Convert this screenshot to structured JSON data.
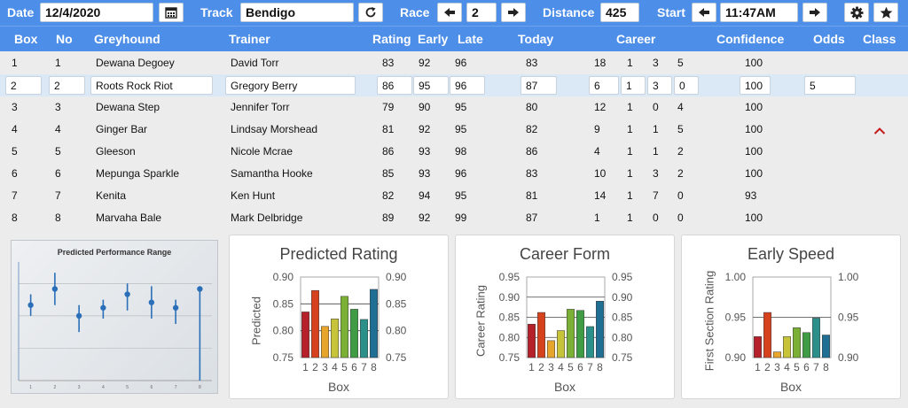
{
  "toolbar": {
    "date_label": "Date",
    "date_value": "12/4/2020",
    "track_label": "Track",
    "track_value": "Bendigo",
    "race_label": "Race",
    "race_value": "2",
    "distance_label": "Distance",
    "distance_value": "425",
    "start_label": "Start",
    "start_value": "11:47AM"
  },
  "columns": {
    "box": "Box",
    "no": "No",
    "greyhound": "Greyhound",
    "trainer": "Trainer",
    "rating": "Rating",
    "early": "Early",
    "late": "Late",
    "today": "Today",
    "career": "Career",
    "confidence": "Confidence",
    "odds": "Odds",
    "class": "Class"
  },
  "rows": [
    {
      "box": "1",
      "no": "1",
      "greyhound": "Dewana Degoey",
      "trainer": "David Torr",
      "rating": "83",
      "early": "92",
      "late": "96",
      "today": "83",
      "c1": "18",
      "c2": "1",
      "c3": "3",
      "c4": "5",
      "confidence": "100",
      "odds": ""
    },
    {
      "box": "2",
      "no": "2",
      "greyhound": "Roots Rock Riot",
      "trainer": "Gregory Berry",
      "rating": "86",
      "early": "95",
      "late": "96",
      "today": "87",
      "c1": "6",
      "c2": "1",
      "c3": "3",
      "c4": "0",
      "confidence": "100",
      "odds": "5"
    },
    {
      "box": "3",
      "no": "3",
      "greyhound": "Dewana Step",
      "trainer": "Jennifer Torr",
      "rating": "79",
      "early": "90",
      "late": "95",
      "today": "80",
      "c1": "12",
      "c2": "1",
      "c3": "0",
      "c4": "4",
      "confidence": "100",
      "odds": ""
    },
    {
      "box": "4",
      "no": "4",
      "greyhound": "Ginger Bar",
      "trainer": "Lindsay Morshead",
      "rating": "81",
      "early": "92",
      "late": "95",
      "today": "82",
      "c1": "9",
      "c2": "1",
      "c3": "1",
      "c4": "5",
      "confidence": "100",
      "odds": ""
    },
    {
      "box": "5",
      "no": "5",
      "greyhound": "Gleeson",
      "trainer": "Nicole Mcrae",
      "rating": "86",
      "early": "93",
      "late": "98",
      "today": "86",
      "c1": "4",
      "c2": "1",
      "c3": "1",
      "c4": "2",
      "confidence": "100",
      "odds": ""
    },
    {
      "box": "6",
      "no": "6",
      "greyhound": "Mepunga Sparkle",
      "trainer": "Samantha Hooke",
      "rating": "85",
      "early": "93",
      "late": "96",
      "today": "83",
      "c1": "10",
      "c2": "1",
      "c3": "3",
      "c4": "2",
      "confidence": "100",
      "odds": ""
    },
    {
      "box": "7",
      "no": "7",
      "greyhound": "Kenita",
      "trainer": "Ken Hunt",
      "rating": "82",
      "early": "94",
      "late": "95",
      "today": "81",
      "c1": "14",
      "c2": "1",
      "c3": "7",
      "c4": "0",
      "confidence": "93",
      "odds": ""
    },
    {
      "box": "8",
      "no": "8",
      "greyhound": "Marvaha Bale",
      "trainer": "Mark Delbridge",
      "rating": "89",
      "early": "92",
      "late": "99",
      "today": "87",
      "c1": "1",
      "c2": "1",
      "c3": "0",
      "c4": "0",
      "confidence": "100",
      "odds": ""
    }
  ],
  "bar_colors": [
    "#b5202a",
    "#d7421e",
    "#e8a52b",
    "#c8c43a",
    "#7ab035",
    "#3f9c44",
    "#2b8f8a",
    "#1f6e93"
  ],
  "chart_data": [
    {
      "type": "scatter",
      "title": "Predicted Performance Range",
      "categories": [
        "1",
        "2",
        "3",
        "4",
        "5",
        "6",
        "7",
        "8"
      ],
      "values": [
        0.84,
        0.87,
        0.82,
        0.835,
        0.86,
        0.845,
        0.835,
        0.87
      ],
      "low": [
        0.82,
        0.84,
        0.79,
        0.815,
        0.83,
        0.815,
        0.805,
        0.7
      ],
      "high": [
        0.86,
        0.9,
        0.84,
        0.85,
        0.88,
        0.875,
        0.85,
        0.87
      ],
      "ylim": [
        0.7,
        0.92
      ],
      "xlabel": "",
      "ylabel": ""
    },
    {
      "type": "bar",
      "title": "Predicted Rating",
      "categories": [
        "1",
        "2",
        "3",
        "4",
        "5",
        "6",
        "7",
        "8"
      ],
      "values": [
        0.835,
        0.875,
        0.808,
        0.822,
        0.864,
        0.84,
        0.821,
        0.877
      ],
      "ylim": [
        0.75,
        0.9
      ],
      "yticks": [
        "0.90",
        "0.85",
        "0.80",
        "0.75"
      ],
      "xlabel": "Box",
      "ylabel": "Predicted"
    },
    {
      "type": "bar",
      "title": "Career Form",
      "categories": [
        "1",
        "2",
        "3",
        "4",
        "5",
        "6",
        "7",
        "8"
      ],
      "values": [
        0.833,
        0.862,
        0.792,
        0.817,
        0.87,
        0.867,
        0.827,
        0.89
      ],
      "ylim": [
        0.75,
        0.95
      ],
      "yticks": [
        "0.95",
        "0.90",
        "0.85",
        "0.80",
        "0.75"
      ],
      "xlabel": "Box",
      "ylabel": "Career Rating"
    },
    {
      "type": "bar",
      "title": "Early Speed",
      "categories": [
        "1",
        "2",
        "3",
        "4",
        "5",
        "6",
        "7",
        "8"
      ],
      "values": [
        0.926,
        0.956,
        0.907,
        0.926,
        0.937,
        0.931,
        0.949,
        0.928
      ],
      "ylim": [
        0.9,
        1.0
      ],
      "yticks": [
        "1.00",
        "0.95",
        "0.90"
      ],
      "xlabel": "Box",
      "ylabel": "First Section Rating"
    }
  ]
}
